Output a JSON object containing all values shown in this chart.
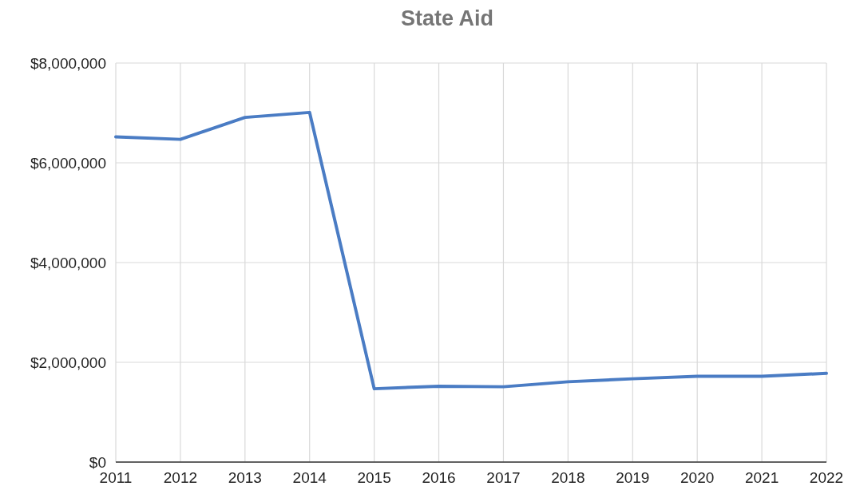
{
  "chart_data": {
    "type": "line",
    "title": "State Aid",
    "categories": [
      "2011",
      "2012",
      "2013",
      "2014",
      "2015",
      "2016",
      "2017",
      "2018",
      "2019",
      "2020",
      "2021",
      "2022"
    ],
    "series": [
      {
        "color": "#4a7cc4",
        "values": [
          6520000,
          6470000,
          6910000,
          7010000,
          1470000,
          1520000,
          1510000,
          1610000,
          1670000,
          1720000,
          1720000,
          1780000
        ]
      }
    ],
    "ylim": [
      0,
      8000000
    ],
    "yticks": [
      {
        "value": 0,
        "label": "$0"
      },
      {
        "value": 2000000,
        "label": "$2,000,000"
      },
      {
        "value": 4000000,
        "label": "$4,000,000"
      },
      {
        "value": 6000000,
        "label": "$6,000,000"
      },
      {
        "value": 8000000,
        "label": "$8,000,000"
      }
    ],
    "grid": true,
    "marker": "none",
    "line_style": "solid"
  }
}
